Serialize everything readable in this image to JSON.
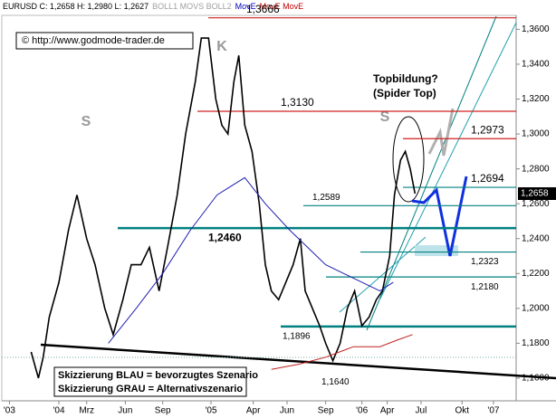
{
  "header": {
    "items": [
      {
        "text": "EURUSD C: 1,2658 H: 1,2980 L: 1,2627",
        "color": "#000000"
      },
      {
        "text": "BOLL1 MOVS BOLL2",
        "color": "#a0a0a0"
      },
      {
        "text": "MovE",
        "color": "#0000c0"
      },
      {
        "text": "MovE MovE",
        "color": "#c00000"
      }
    ]
  },
  "chart_data": {
    "type": "line",
    "copyright": "© http://www.godmode-trader.de",
    "annotations": [
      "S",
      "K",
      "S",
      "Topbildung?",
      "(Spider Top)"
    ],
    "legend_box": [
      "Skizzierung BLAU = bevorzugtes Szenario",
      "Skizzierung GRAU = Alternativszenario"
    ],
    "last": {
      "value": 1.2658,
      "label": "1,2658"
    },
    "xlim": [
      -4.73,
      37.88
    ],
    "ylim": [
      1.147,
      1.368
    ],
    "xticks": [
      {
        "value": -4.1,
        "label": "'03"
      },
      {
        "value": 0,
        "label": "'04"
      },
      {
        "value": 2.3,
        "label": "Mrz"
      },
      {
        "value": 5.5,
        "label": "Jun"
      },
      {
        "value": 8.6,
        "label": "Sep"
      },
      {
        "value": 12.6,
        "label": "'05"
      },
      {
        "value": 16.1,
        "label": "Apr"
      },
      {
        "value": 18.9,
        "label": "Jun"
      },
      {
        "value": 22.1,
        "label": "Sep"
      },
      {
        "value": 25.1,
        "label": "'06"
      },
      {
        "value": 27.2,
        "label": "Apr"
      },
      {
        "value": 30,
        "label": "Jul"
      },
      {
        "value": 33.4,
        "label": "Okt"
      },
      {
        "value": 36,
        "label": "'07"
      }
    ],
    "yticks": [
      {
        "value": 1.16,
        "label": "1,1600"
      },
      {
        "value": 1.18,
        "label": "1,1800"
      },
      {
        "value": 1.2,
        "label": "1,2000"
      },
      {
        "value": 1.22,
        "label": "1,2200"
      },
      {
        "value": 1.24,
        "label": "1,2400"
      },
      {
        "value": 1.26,
        "label": "1,2600"
      },
      {
        "value": 1.28,
        "label": "1,2800"
      },
      {
        "value": 1.3,
        "label": "1,3000"
      },
      {
        "value": 1.32,
        "label": "1,3200"
      },
      {
        "value": 1.34,
        "label": "1,3400"
      },
      {
        "value": 1.36,
        "label": "1,3600"
      }
    ],
    "levels": [
      {
        "value": 1.3666,
        "label": "1,3666",
        "color": "#d02020"
      },
      {
        "value": 1.313,
        "label": "1,3130",
        "color": "#d02020"
      },
      {
        "value": 1.2973,
        "label": "1,2973",
        "color": "#d02020"
      },
      {
        "value": 1.2694,
        "label": "1,2694",
        "color": "#008080"
      },
      {
        "value": 1.2589,
        "label": "1,2589",
        "color": "#008080"
      },
      {
        "value": 1.246,
        "label": "1,2460",
        "color": "#008080"
      },
      {
        "value": 1.2323,
        "label": "1,2323",
        "color": "#008080"
      },
      {
        "value": 1.218,
        "label": "1,2180",
        "color": "#008080"
      },
      {
        "value": 1.1896,
        "label": "1,1896",
        "color": "#008080"
      },
      {
        "value": 1.164,
        "label": "1,1640",
        "color": "#000000"
      }
    ],
    "series": [
      {
        "color": "#000000",
        "x": [
          -2.3,
          -1.7,
          -1.3,
          -0.8,
          0,
          0.8,
          1.5,
          2.3,
          3.0,
          3.8,
          4.5,
          5.3,
          6.0,
          6.8,
          7.5,
          8.3,
          9.0,
          9.8,
          10.5,
          11.3,
          11.8,
          12.4,
          13.0,
          13.5,
          14.0,
          14.5,
          14.9,
          15.4,
          16.0,
          16.6,
          17.1,
          17.6,
          18.2,
          18.8,
          19.4,
          20.0,
          20.4,
          21.0,
          21.6,
          22.1,
          22.7,
          23.3,
          23.9,
          24.5,
          25.1,
          25.7,
          26.3,
          26.8,
          27.4,
          27.8,
          28.3,
          28.7,
          29.1,
          29.5
        ],
        "values": [
          1.175,
          1.16,
          1.172,
          1.195,
          1.215,
          1.245,
          1.265,
          1.24,
          1.225,
          1.2,
          1.185,
          1.205,
          1.225,
          1.225,
          1.235,
          1.21,
          1.235,
          1.265,
          1.3,
          1.33,
          1.355,
          1.355,
          1.32,
          1.305,
          1.3,
          1.33,
          1.345,
          1.305,
          1.29,
          1.26,
          1.225,
          1.21,
          1.205,
          1.215,
          1.225,
          1.24,
          1.21,
          1.2,
          1.19,
          1.18,
          1.17,
          1.18,
          1.2,
          1.21,
          1.19,
          1.195,
          1.205,
          1.21,
          1.23,
          1.265,
          1.285,
          1.29,
          1.28,
          1.2658
        ]
      },
      {
        "color": "#2020b0",
        "x": [
          4.1,
          6.4,
          8.6,
          10.9,
          13.1,
          15.4,
          17.1,
          19.1,
          20.6,
          22.1,
          23.6,
          25.1,
          26.6,
          27.7
        ],
        "values": [
          1.18,
          1.2,
          1.22,
          1.245,
          1.265,
          1.275,
          1.26,
          1.245,
          1.235,
          1.225,
          1.22,
          1.215,
          1.21,
          1.215
        ]
      },
      {
        "color": "#c02020",
        "x": [
          17.6,
          19.9,
          22.1,
          24.4,
          26.6,
          28.1,
          29.3
        ],
        "values": [
          1.165,
          1.168,
          1.172,
          1.178,
          1.178,
          1.182,
          1.185
        ]
      }
    ]
  }
}
